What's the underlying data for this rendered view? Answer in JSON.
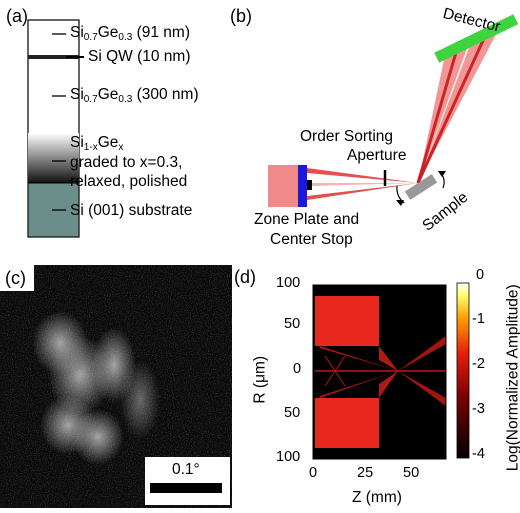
{
  "panel_a": {
    "letter": "(a)",
    "layers": [
      {
        "base": "Si",
        "sub1": "0.7",
        "mid": "Ge",
        "sub2": "0.3",
        "tail": " (91 nm)"
      },
      {
        "text": "Si QW (10 nm)"
      },
      {
        "base": "Si",
        "sub1": "0.7",
        "mid": "Ge",
        "sub2": "0.3",
        "tail": " (300 nm)"
      },
      {
        "base": "Si",
        "sub1": "1-x",
        "mid": "Ge",
        "sub2": "x",
        "tail": ""
      },
      {
        "text": "graded to x=0.3,"
      },
      {
        "text": "relaxed, polished"
      },
      {
        "text": "Si (001) substrate"
      }
    ],
    "colors": {
      "substrate": "#6b8e8a"
    }
  },
  "panel_b": {
    "letter": "(b)",
    "detector": "Detector",
    "aperture_line1": "Order Sorting",
    "aperture_line2": "Aperture",
    "sample": "Sample",
    "zone_line1": "Zone Plate and",
    "zone_line2": "Center Stop",
    "colors": {
      "beam": "#e03030",
      "detector": "#3ed43e",
      "zone_plate": "#1a1adc",
      "source": "#f08a8a"
    }
  },
  "panel_c": {
    "letter": "(c)",
    "scale": "0.1°"
  },
  "panel_d": {
    "letter": "(d)",
    "xlabel": "Z (mm)",
    "ylabel": "R (μm)",
    "x_ticks": [
      "0",
      "25",
      "50"
    ],
    "y_ticks": [
      "100",
      "50",
      "0",
      "50",
      "100"
    ],
    "colorbar_label": "Log(Normalized Amplitude)",
    "colorbar_ticks": [
      "0",
      "-1",
      "-2",
      "-3",
      "-4"
    ],
    "colors": {
      "field": "#e8281e",
      "background": "#000000"
    }
  }
}
